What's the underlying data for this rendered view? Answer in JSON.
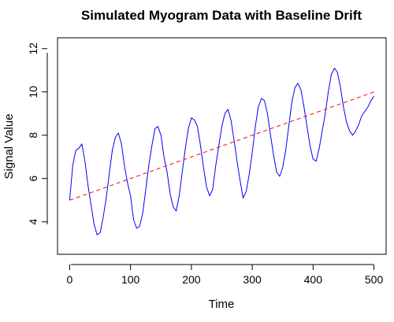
{
  "chart_data": {
    "type": "line",
    "title": "Simulated Myogram Data with Baseline Drift",
    "xlabel": "Time",
    "ylabel": "Signal Value",
    "xlim": [
      -20,
      520
    ],
    "ylim": [
      2.5,
      12.5
    ],
    "xticks": [
      0,
      100,
      200,
      300,
      400,
      500
    ],
    "yticks": [
      4,
      6,
      8,
      10,
      12
    ],
    "grid": false,
    "legend": "none",
    "series": [
      {
        "style": "solid",
        "color": "#0000ff",
        "x": [
          0,
          5,
          10,
          15,
          20,
          25,
          30,
          35,
          40,
          45,
          50,
          55,
          60,
          65,
          70,
          75,
          80,
          85,
          90,
          95,
          100,
          105,
          110,
          115,
          120,
          125,
          130,
          135,
          140,
          145,
          150,
          155,
          160,
          165,
          170,
          175,
          180,
          185,
          190,
          195,
          200,
          205,
          210,
          215,
          220,
          225,
          230,
          235,
          240,
          245,
          250,
          255,
          260,
          265,
          270,
          275,
          280,
          285,
          290,
          295,
          300,
          305,
          310,
          315,
          320,
          325,
          330,
          335,
          340,
          345,
          350,
          355,
          360,
          365,
          370,
          375,
          380,
          385,
          390,
          395,
          400,
          405,
          410,
          415,
          420,
          425,
          430,
          435,
          440,
          445,
          450,
          455,
          460,
          465,
          470,
          475,
          480,
          485,
          490,
          495,
          500
        ],
        "y": [
          5.0,
          6.6,
          7.3,
          7.4,
          7.6,
          6.8,
          5.7,
          4.8,
          3.9,
          3.4,
          3.5,
          4.2,
          5.1,
          6.2,
          7.3,
          7.9,
          8.1,
          7.6,
          6.6,
          5.8,
          5.2,
          4.1,
          3.7,
          3.8,
          4.4,
          5.5,
          6.6,
          7.5,
          8.3,
          8.4,
          8.0,
          7.0,
          6.3,
          5.3,
          4.7,
          4.5,
          5.2,
          6.3,
          7.4,
          8.3,
          8.8,
          8.7,
          8.4,
          7.5,
          6.5,
          5.6,
          5.2,
          5.5,
          6.6,
          7.5,
          8.4,
          9.0,
          9.2,
          8.7,
          7.8,
          6.8,
          5.9,
          5.1,
          5.4,
          6.2,
          7.2,
          8.4,
          9.3,
          9.7,
          9.6,
          9.0,
          8.0,
          7.1,
          6.3,
          6.1,
          6.5,
          7.3,
          8.4,
          9.5,
          10.2,
          10.4,
          10.1,
          9.3,
          8.4,
          7.5,
          6.9,
          6.8,
          7.4,
          8.2,
          9.0,
          10.0,
          10.8,
          11.1,
          10.9,
          10.2,
          9.3,
          8.6,
          8.2,
          8.0,
          8.2,
          8.5,
          8.9,
          9.1,
          9.3,
          9.6,
          9.8
        ]
      },
      {
        "style": "dashed",
        "color": "#ff0000",
        "x": [
          0,
          500
        ],
        "y": [
          5.0,
          10.0
        ]
      }
    ]
  }
}
